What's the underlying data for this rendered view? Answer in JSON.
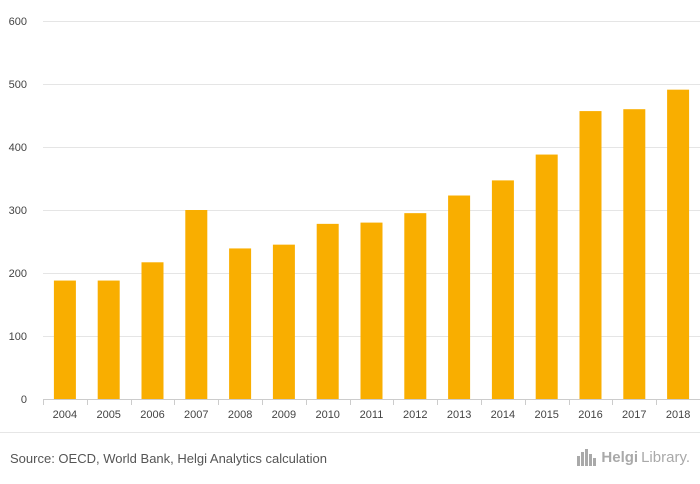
{
  "chart_data": {
    "type": "bar",
    "categories": [
      "2004",
      "2005",
      "2006",
      "2007",
      "2008",
      "2009",
      "2010",
      "2011",
      "2012",
      "2013",
      "2014",
      "2015",
      "2016",
      "2017",
      "2018"
    ],
    "values": [
      188,
      188,
      217,
      300,
      239,
      245,
      278,
      280,
      295,
      323,
      347,
      388,
      457,
      460,
      491
    ],
    "ylim": [
      0,
      600
    ],
    "yticks": [
      0,
      100,
      200,
      300,
      400,
      500,
      600
    ],
    "grid": true,
    "bar_color": "#f9ae00",
    "title": "",
    "xlabel": "",
    "ylabel": ""
  },
  "footer": {
    "source": "Source: OECD, World Bank, Helgi Analytics calculation",
    "brand_prefix": "Helgi",
    "brand_suffix": "Library."
  },
  "colors": {
    "grid": "#e5e5e5",
    "axis": "#cccccc",
    "brand": "#a9a9a9"
  },
  "icons": {
    "brand_logo": "city-skyline-icon"
  }
}
